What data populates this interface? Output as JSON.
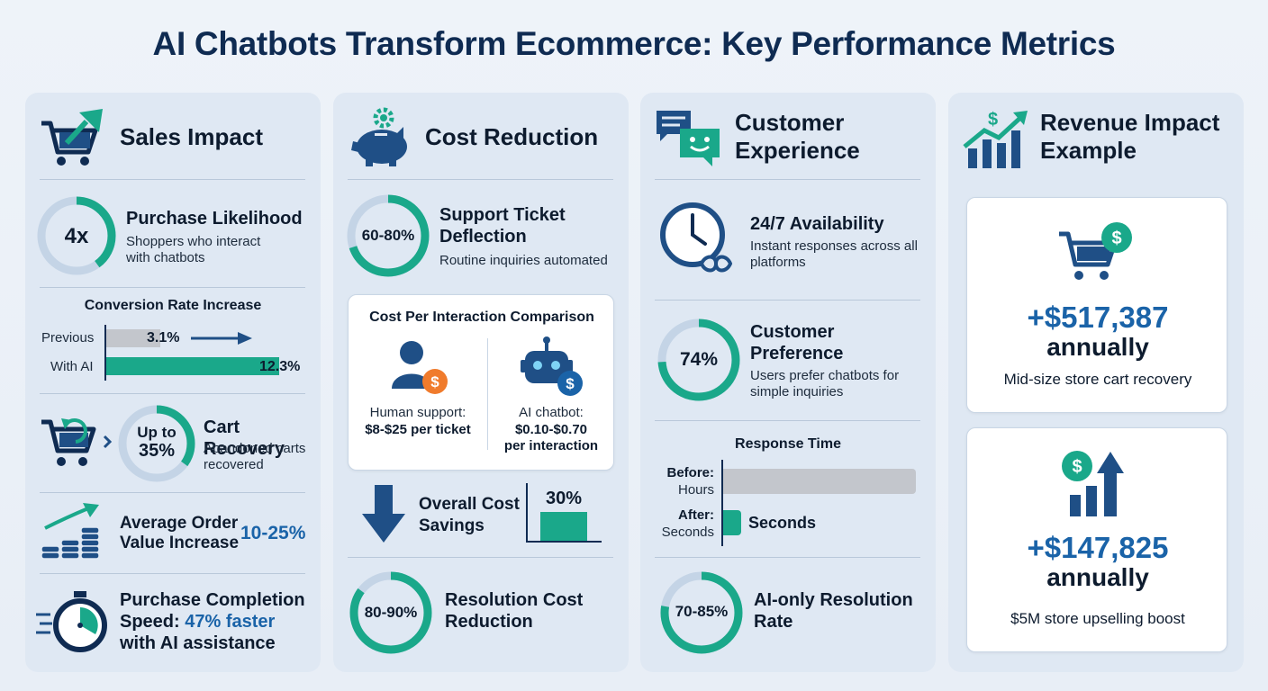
{
  "title": "AI Chatbots Transform Ecommerce: Key Performance Metrics",
  "colors": {
    "navy": "#0f2b52",
    "teal": "#1aa88a",
    "blue": "#1a63a8",
    "light_ring": "#c4d4e6",
    "panel": "#dfe8f3"
  },
  "sales": {
    "header": "Sales Impact",
    "purchase": {
      "ring": "4x",
      "title": "Purchase Likelihood",
      "desc": "Shoppers who interact with chatbots"
    },
    "conversion": {
      "title": "Conversion Rate Increase",
      "bars": [
        {
          "label": "Previous",
          "value": 3.1,
          "value_text": "3.1%"
        },
        {
          "label": "With AI",
          "value": 12.3,
          "value_text": "12.3%"
        }
      ]
    },
    "cart": {
      "ring_line1": "Up to",
      "ring_line2": "35%",
      "ring_value": 35,
      "title": "Cart Recovery",
      "desc": "Abandoned carts recovered"
    },
    "aov": {
      "title": "Average Order Value Increase",
      "value": "10-25%"
    },
    "completion": {
      "title_a": "Purchase Completion",
      "title_b": "Speed:",
      "highlight": "47% faster",
      "title_c": "with AI assistance"
    }
  },
  "cost": {
    "header": "Cost Reduction",
    "deflection": {
      "ring": "60-80%",
      "title": "Support Ticket Deflection",
      "desc": "Routine inquiries automated"
    },
    "comparison": {
      "title": "Cost Per Interaction Comparison",
      "human_label": "Human support:",
      "human_value": "$8-$25 per ticket",
      "ai_label": "AI chatbot:",
      "ai_value_1": "$0.10-$0.70",
      "ai_value_2": "per interaction"
    },
    "overall": {
      "title": "Overall Cost Savings",
      "value": "30%"
    },
    "resolution": {
      "ring": "80-90%",
      "title": "Resolution Cost Reduction"
    }
  },
  "cx": {
    "header": "Customer Experience",
    "availability": {
      "title": "24/7 Availability",
      "desc": "Instant responses across all platforms"
    },
    "preference": {
      "ring": "74%",
      "ring_value": 74,
      "title": "Customer Preference",
      "desc": "Users prefer chatbots for simple inquiries"
    },
    "response": {
      "title": "Response Time",
      "before_label": "Before:",
      "before_value": "Hours",
      "after_label": "After:",
      "after_sub": "Seconds",
      "after_value": "Seconds"
    },
    "ai_only": {
      "ring": "70-85%",
      "title": "AI-only Resolution Rate"
    }
  },
  "revenue": {
    "header": "Revenue Impact Example",
    "card1": {
      "amount": "+$517,387",
      "period": "annually",
      "desc": "Mid-size store cart recovery"
    },
    "card2": {
      "amount": "+$147,825",
      "period": "annually",
      "desc": "$5M store upselling boost"
    }
  }
}
